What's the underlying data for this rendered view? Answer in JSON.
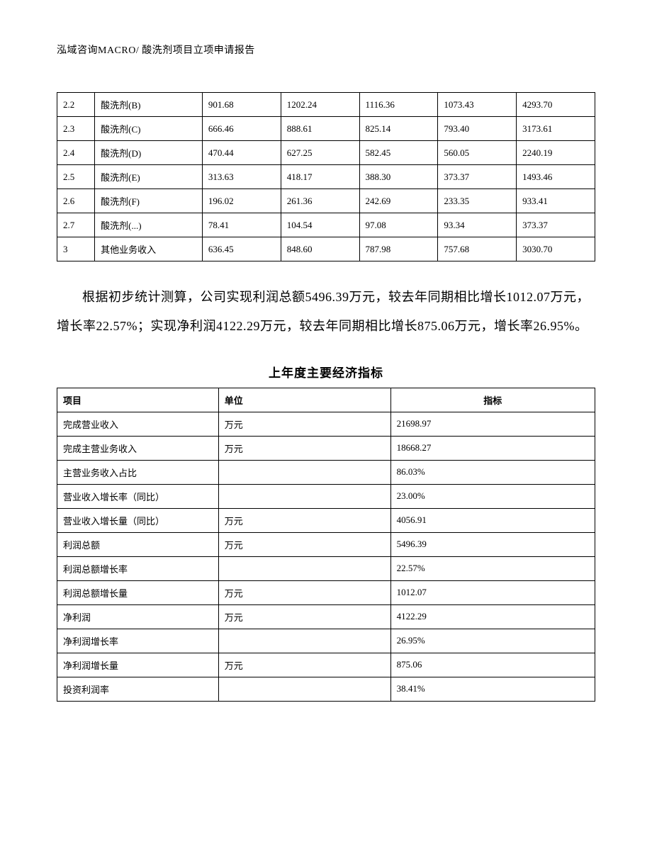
{
  "header": "泓域咨询MACRO/   酸洗剂项目立项申请报告",
  "table1": {
    "rows": [
      [
        "2.2",
        "酸洗剂(B)",
        "901.68",
        "1202.24",
        "1116.36",
        "1073.43",
        "4293.70"
      ],
      [
        "2.3",
        "酸洗剂(C)",
        "666.46",
        "888.61",
        "825.14",
        "793.40",
        "3173.61"
      ],
      [
        "2.4",
        "酸洗剂(D)",
        "470.44",
        "627.25",
        "582.45",
        "560.05",
        "2240.19"
      ],
      [
        "2.5",
        "酸洗剂(E)",
        "313.63",
        "418.17",
        "388.30",
        "373.37",
        "1493.46"
      ],
      [
        "2.6",
        "酸洗剂(F)",
        "196.02",
        "261.36",
        "242.69",
        "233.35",
        "933.41"
      ],
      [
        "2.7",
        "酸洗剂(...)",
        "78.41",
        "104.54",
        "97.08",
        "93.34",
        "373.37"
      ],
      [
        "3",
        "其他业务收入",
        "636.45",
        "848.60",
        "787.98",
        "757.68",
        "3030.70"
      ]
    ]
  },
  "paragraph": "根据初步统计测算，公司实现利润总额5496.39万元，较去年同期相比增长1012.07万元，增长率22.57%；实现净利润4122.29万元，较去年同期相比增长875.06万元，增长率26.95%。",
  "table2_title": "上年度主要经济指标",
  "table2": {
    "headers": [
      "项目",
      "单位",
      "指标"
    ],
    "rows": [
      [
        "完成营业收入",
        "万元",
        "21698.97"
      ],
      [
        "完成主营业务收入",
        "万元",
        "18668.27"
      ],
      [
        "主营业务收入占比",
        "",
        "86.03%"
      ],
      [
        "营业收入增长率（同比）",
        "",
        "23.00%"
      ],
      [
        "营业收入增长量（同比）",
        "万元",
        "4056.91"
      ],
      [
        "利润总额",
        "万元",
        "5496.39"
      ],
      [
        "利润总额增长率",
        "",
        "22.57%"
      ],
      [
        "利润总额增长量",
        "万元",
        "1012.07"
      ],
      [
        "净利润",
        "万元",
        "4122.29"
      ],
      [
        "净利润增长率",
        "",
        "26.95%"
      ],
      [
        "净利润增长量",
        "万元",
        "875.06"
      ],
      [
        "投资利润率",
        "",
        "38.41%"
      ]
    ]
  }
}
